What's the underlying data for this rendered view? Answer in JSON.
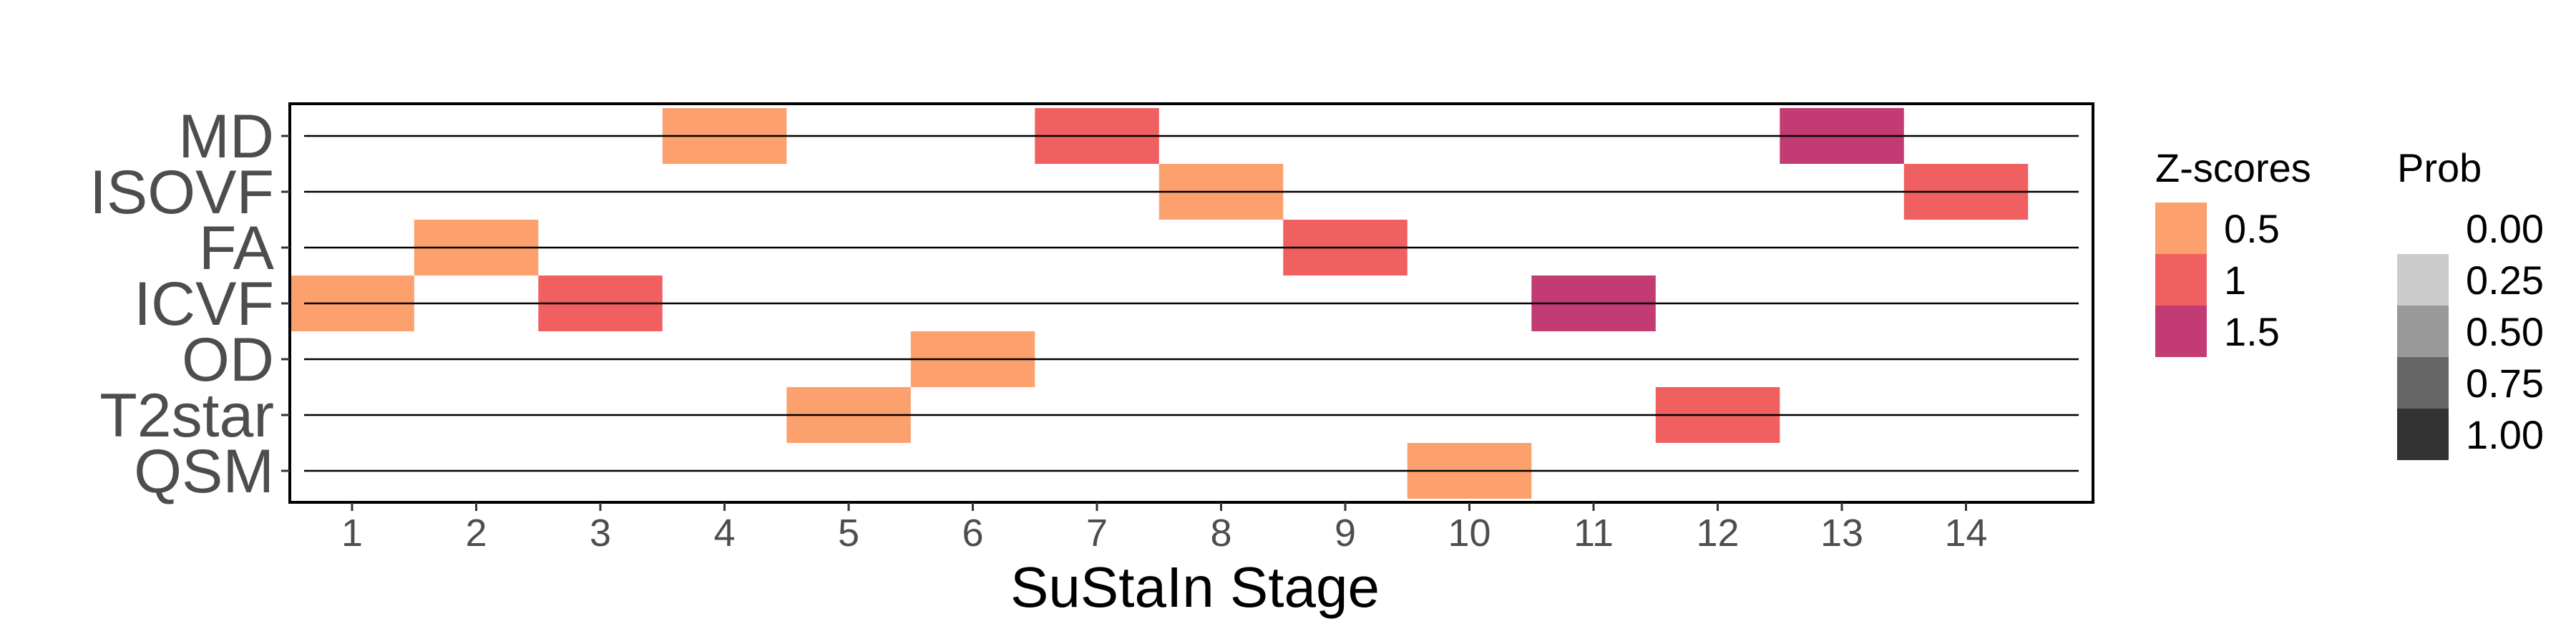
{
  "chart_data": {
    "type": "heatmap",
    "title": "",
    "xlabel": "SuStaIn Stage",
    "ylabel": "",
    "x_categories": [
      "1",
      "2",
      "3",
      "4",
      "5",
      "6",
      "7",
      "8",
      "9",
      "10",
      "11",
      "12",
      "13",
      "14"
    ],
    "y_categories": [
      "MD",
      "ISOVF",
      "FA",
      "ICVF",
      "OD",
      "T2star",
      "QSM"
    ],
    "cells": [
      {
        "stage": 1,
        "biomarker": "ICVF",
        "z": 0.5
      },
      {
        "stage": 2,
        "biomarker": "FA",
        "z": 0.5
      },
      {
        "stage": 3,
        "biomarker": "ICVF",
        "z": 1
      },
      {
        "stage": 4,
        "biomarker": "MD",
        "z": 0.5
      },
      {
        "stage": 5,
        "biomarker": "T2star",
        "z": 0.5
      },
      {
        "stage": 6,
        "biomarker": "OD",
        "z": 0.5
      },
      {
        "stage": 7,
        "biomarker": "MD",
        "z": 1
      },
      {
        "stage": 8,
        "biomarker": "ISOVF",
        "z": 0.5
      },
      {
        "stage": 9,
        "biomarker": "FA",
        "z": 1
      },
      {
        "stage": 10,
        "biomarker": "QSM",
        "z": 0.5
      },
      {
        "stage": 11,
        "biomarker": "ICVF",
        "z": 1.5
      },
      {
        "stage": 12,
        "biomarker": "T2star",
        "z": 1
      },
      {
        "stage": 13,
        "biomarker": "MD",
        "z": 1.5
      },
      {
        "stage": 14,
        "biomarker": "ISOVF",
        "z": 1
      }
    ],
    "zscore_legend": {
      "title": "Z-scores",
      "items": [
        {
          "label": "0.5",
          "color": "#FCA06E"
        },
        {
          "label": "1",
          "color": "#F06060"
        },
        {
          "label": "1.5",
          "color": "#C23B72"
        }
      ]
    },
    "prob_legend": {
      "title": "Prob",
      "items": [
        {
          "label": "0.00",
          "value": 0.0
        },
        {
          "label": "0.25",
          "value": 0.25
        },
        {
          "label": "0.50",
          "value": 0.5
        },
        {
          "label": "0.75",
          "value": 0.75
        },
        {
          "label": "1.00",
          "value": 1.0
        }
      ]
    },
    "legend_position": "right",
    "grid": false
  }
}
